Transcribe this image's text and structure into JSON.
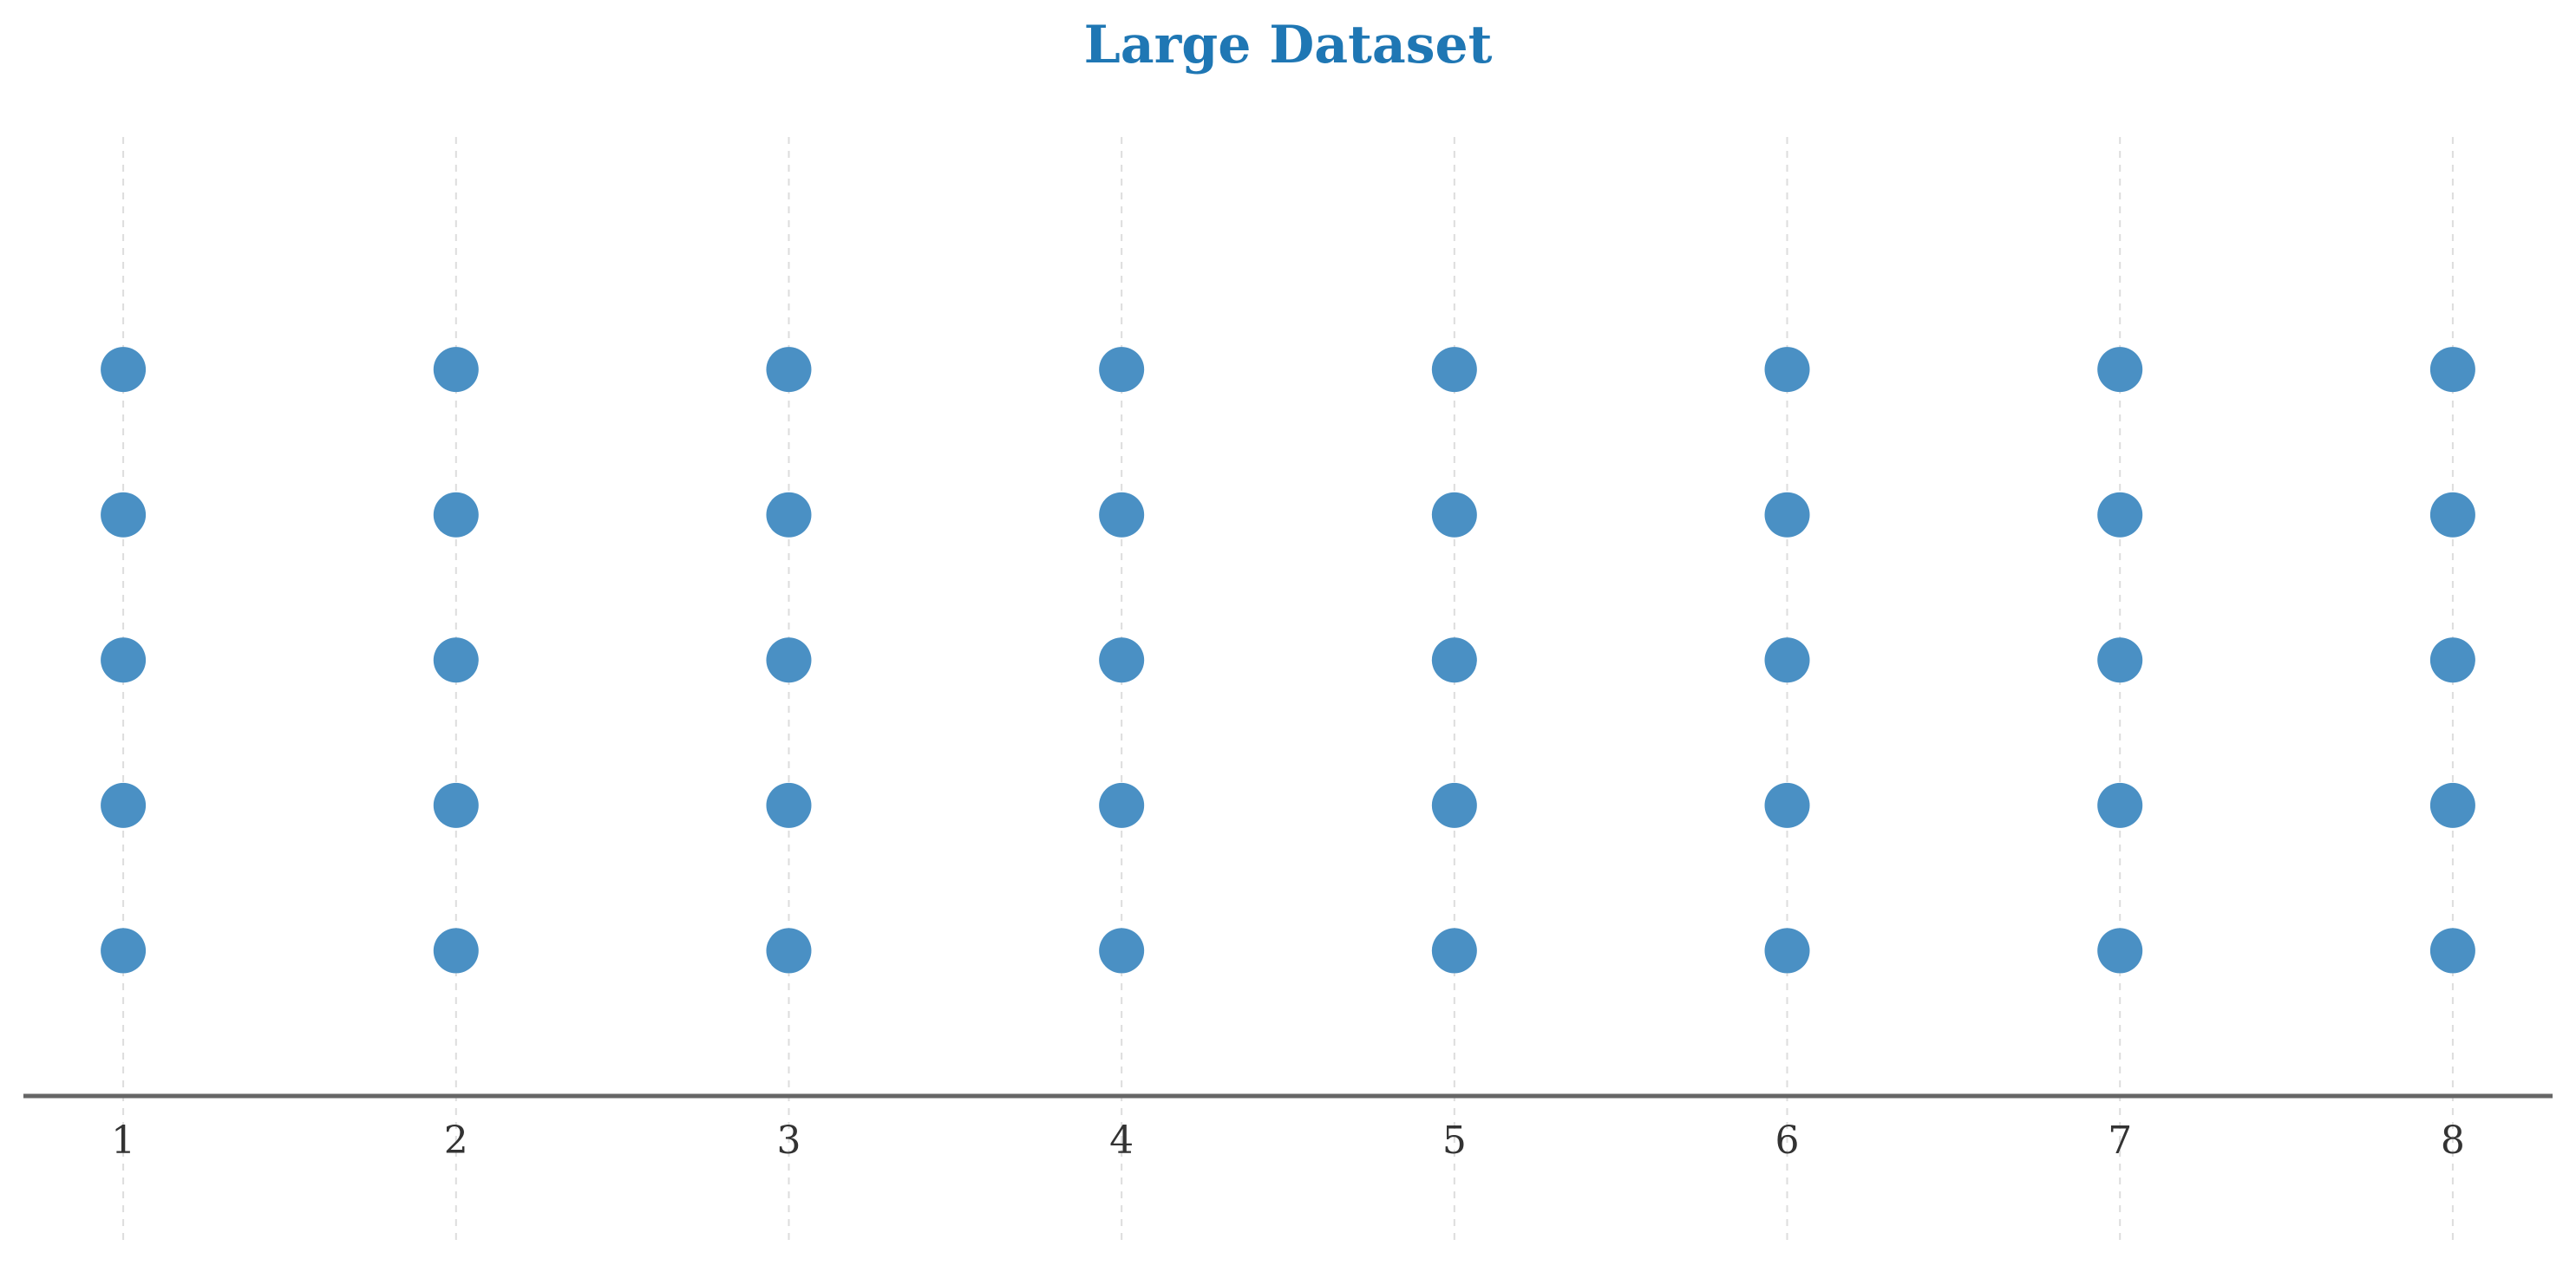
{
  "chart_data": {
    "type": "scatter",
    "title": "Large Dataset",
    "xlabel": "",
    "ylabel": "",
    "x_ticks": [
      "1",
      "2",
      "3",
      "4",
      "5",
      "6",
      "7",
      "8"
    ],
    "xlim": [
      0.7,
      8.3
    ],
    "ylim": [
      0,
      6.6
    ],
    "y_axis_visible": false,
    "grid": "vertical dashed",
    "series": [
      {
        "points": [
          {
            "x": 1,
            "y": 1
          },
          {
            "x": 1,
            "y": 2
          },
          {
            "x": 1,
            "y": 3
          },
          {
            "x": 1,
            "y": 4
          },
          {
            "x": 1,
            "y": 5
          },
          {
            "x": 2,
            "y": 1
          },
          {
            "x": 2,
            "y": 2
          },
          {
            "x": 2,
            "y": 3
          },
          {
            "x": 2,
            "y": 4
          },
          {
            "x": 2,
            "y": 5
          },
          {
            "x": 3,
            "y": 1
          },
          {
            "x": 3,
            "y": 2
          },
          {
            "x": 3,
            "y": 3
          },
          {
            "x": 3,
            "y": 4
          },
          {
            "x": 3,
            "y": 5
          },
          {
            "x": 4,
            "y": 1
          },
          {
            "x": 4,
            "y": 2
          },
          {
            "x": 4,
            "y": 3
          },
          {
            "x": 4,
            "y": 4
          },
          {
            "x": 4,
            "y": 5
          },
          {
            "x": 5,
            "y": 1
          },
          {
            "x": 5,
            "y": 2
          },
          {
            "x": 5,
            "y": 3
          },
          {
            "x": 5,
            "y": 4
          },
          {
            "x": 5,
            "y": 5
          },
          {
            "x": 6,
            "y": 1
          },
          {
            "x": 6,
            "y": 2
          },
          {
            "x": 6,
            "y": 3
          },
          {
            "x": 6,
            "y": 4
          },
          {
            "x": 6,
            "y": 5
          },
          {
            "x": 7,
            "y": 1
          },
          {
            "x": 7,
            "y": 2
          },
          {
            "x": 7,
            "y": 3
          },
          {
            "x": 7,
            "y": 4
          },
          {
            "x": 7,
            "y": 5
          },
          {
            "x": 8,
            "y": 1
          },
          {
            "x": 8,
            "y": 2
          },
          {
            "x": 8,
            "y": 3
          },
          {
            "x": 8,
            "y": 4
          },
          {
            "x": 8,
            "y": 5
          }
        ]
      }
    ],
    "colors": {
      "title": "#1f77b4",
      "point": "#4a90c4",
      "axis": "#666666",
      "grid": "#dddddd",
      "tick_label": "#333333"
    }
  }
}
